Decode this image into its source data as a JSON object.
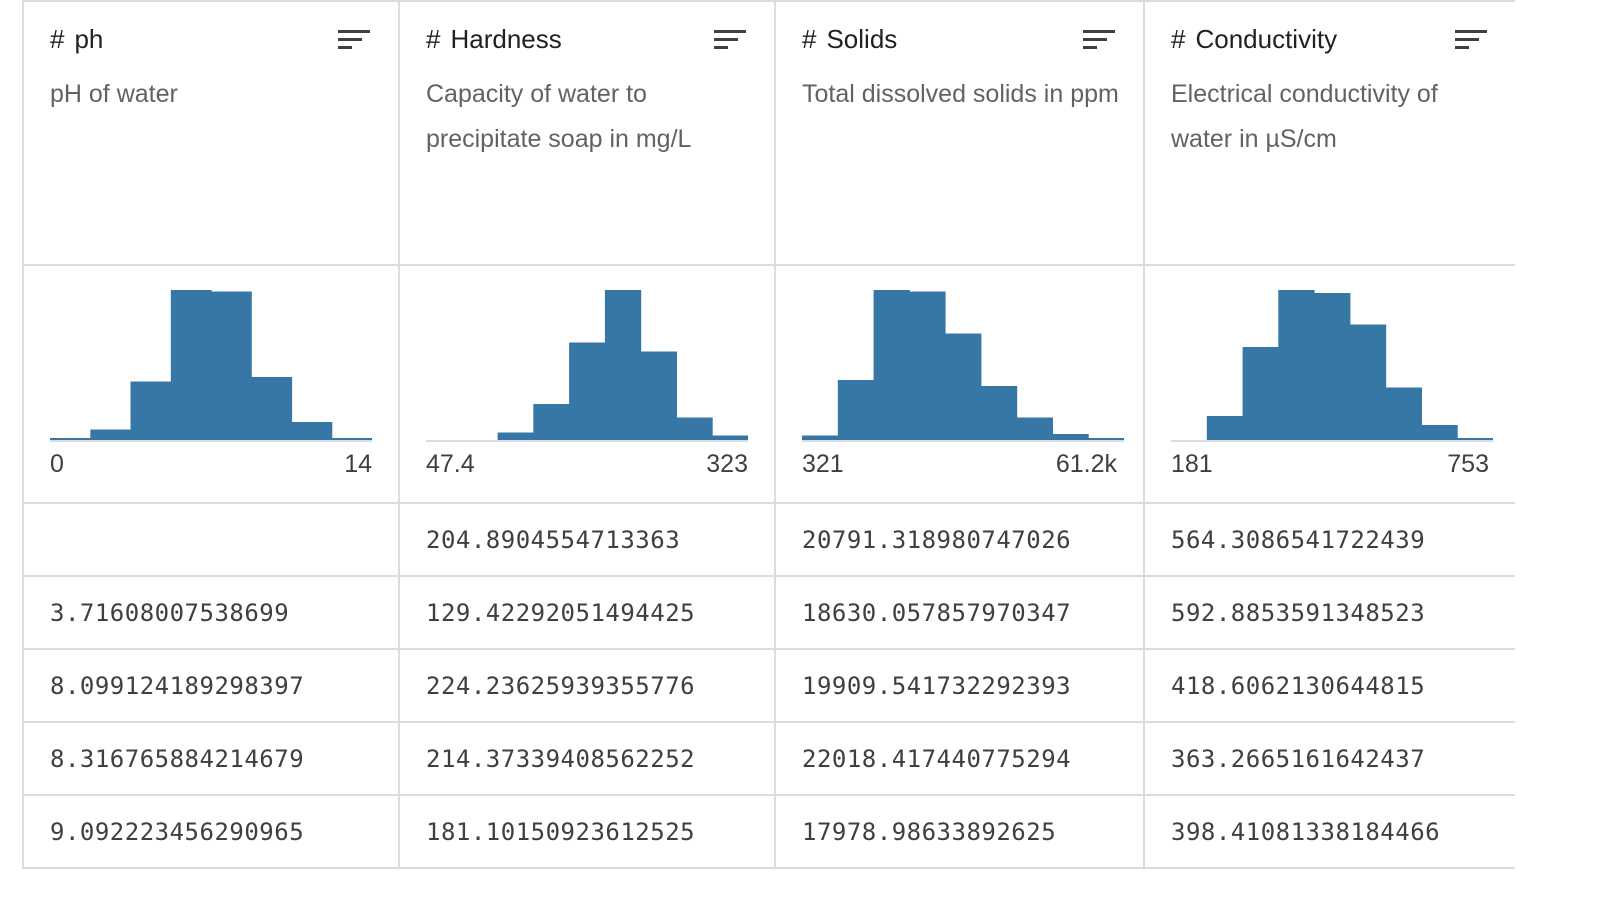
{
  "columns": [
    {
      "type_icon": "#",
      "name": "ph",
      "description": "pH of water",
      "range_min": "0",
      "range_max": "14",
      "histogram": [
        0.01,
        0.07,
        0.39,
        1.0,
        0.99,
        0.42,
        0.12,
        0.01
      ],
      "values": [
        "",
        "3.71608007538699",
        "8.099124189298397",
        "8.316765884214679",
        "9.092223456290965"
      ]
    },
    {
      "type_icon": "#",
      "name": "Hardness",
      "description": "Capacity of water to precipitate soap in mg/L",
      "range_min": "47.4",
      "range_max": "323",
      "histogram": [
        0.0,
        0.0,
        0.05,
        0.24,
        0.65,
        1.0,
        0.59,
        0.15,
        0.03
      ],
      "values": [
        "204.8904554713363",
        "129.42292051494425",
        "224.23625939355776",
        "214.37339408562252",
        "181.10150923612525"
      ]
    },
    {
      "type_icon": "#",
      "name": "Solids",
      "description": "Total dissolved solids in ppm",
      "range_min": "321",
      "range_max": "61.2k",
      "histogram": [
        0.03,
        0.4,
        1.0,
        0.99,
        0.71,
        0.36,
        0.15,
        0.04,
        0.01
      ],
      "values": [
        "20791.318980747026",
        "18630.057857970347",
        "19909.541732292393",
        "22018.417440775294",
        "17978.98633892625"
      ]
    },
    {
      "type_icon": "#",
      "name": "Conductivity",
      "description": "Electrical conductivity of water in µS/cm",
      "range_min": "181",
      "range_max": "753",
      "histogram": [
        0.0,
        0.16,
        0.62,
        1.0,
        0.98,
        0.77,
        0.35,
        0.1,
        0.01
      ],
      "values": [
        "564.3086541722439",
        "592.8853591348523",
        "418.6062130644815",
        "363.2665161642437",
        "398.41081338184466"
      ]
    }
  ],
  "colors": {
    "bar": "#3677a5",
    "border": "#dadce0",
    "muted_text": "#5f6368"
  },
  "icons": {
    "sort": "sort-lines-icon"
  }
}
